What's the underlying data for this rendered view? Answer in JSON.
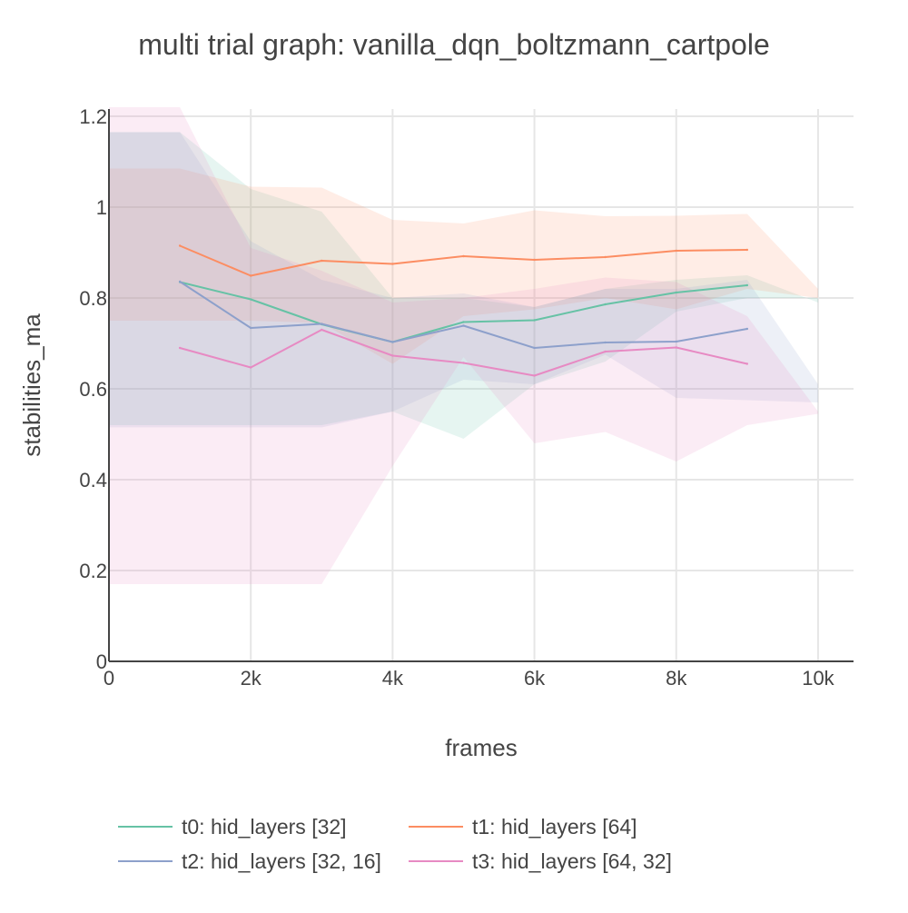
{
  "chart_data": {
    "type": "line",
    "title": "multi trial graph: vanilla_dqn_boltzmann_cartpole",
    "xlabel": "frames",
    "ylabel": "stabilities_ma",
    "xlim": [
      0,
      10500
    ],
    "ylim": [
      0,
      1.2
    ],
    "x_ticks": [
      0,
      2000,
      4000,
      6000,
      8000,
      10000
    ],
    "x_tick_labels": [
      "0",
      "2k",
      "4k",
      "6k",
      "8k",
      "10k"
    ],
    "y_ticks": [
      0,
      0.2,
      0.4,
      0.6,
      0.8,
      1,
      1.2
    ],
    "y_tick_labels": [
      "0",
      "0.2",
      "0.4",
      "0.6",
      "0.8",
      "1",
      "1.2"
    ],
    "grid": true,
    "legend_position": "bottom",
    "x": [
      1000,
      2000,
      3000,
      4000,
      5000,
      6000,
      7000,
      8000,
      9000
    ],
    "series": [
      {
        "name": "t0: hid_layers [32]",
        "color": "#66c2a5",
        "values": [
          0.835,
          0.797,
          0.742,
          0.703,
          0.747,
          0.751,
          0.786,
          0.812,
          0.828
        ],
        "band_x": [
          0,
          1000,
          2000,
          3000,
          4000,
          5000,
          6000,
          7000,
          8000,
          9000,
          10000
        ],
        "band_upper": [
          1.165,
          1.165,
          1.04,
          0.99,
          0.8,
          0.8,
          0.78,
          0.82,
          0.84,
          0.85,
          0.79
        ],
        "band_lower": [
          0.52,
          0.52,
          0.52,
          0.52,
          0.55,
          0.49,
          0.61,
          0.66,
          0.77,
          0.8,
          0.8
        ]
      },
      {
        "name": "t1: hid_layers [64]",
        "color": "#fc8d62",
        "values": [
          0.915,
          0.849,
          0.882,
          0.875,
          0.892,
          0.884,
          0.89,
          0.904,
          0.906
        ],
        "band_x": [
          0,
          1000,
          2000,
          3000,
          4000,
          5000,
          6000,
          7000,
          8000,
          9000,
          10000
        ],
        "band_upper": [
          1.085,
          1.085,
          1.045,
          1.043,
          0.972,
          0.964,
          0.993,
          0.98,
          0.981,
          0.985,
          0.82
        ],
        "band_lower": [
          0.75,
          0.75,
          0.75,
          0.745,
          0.655,
          0.76,
          0.775,
          0.8,
          0.775,
          0.82,
          0.8
        ]
      },
      {
        "name": "t2: hid_layers [32, 16]",
        "color": "#8da0cb",
        "values": [
          0.836,
          0.734,
          0.743,
          0.703,
          0.739,
          0.69,
          0.702,
          0.704,
          0.732
        ],
        "band_x": [
          0,
          1000,
          2000,
          3000,
          4000,
          5000,
          6000,
          7000,
          8000,
          9000,
          10000
        ],
        "band_upper": [
          1.165,
          1.165,
          0.925,
          0.84,
          0.8,
          0.81,
          0.78,
          0.82,
          0.82,
          0.84,
          0.61
        ],
        "band_lower": [
          0.515,
          0.515,
          0.515,
          0.515,
          0.55,
          0.62,
          0.61,
          0.675,
          0.58,
          0.575,
          0.57
        ]
      },
      {
        "name": "t3: hid_layers [64, 32]",
        "color": "#e78ac3",
        "values": [
          0.69,
          0.647,
          0.73,
          0.673,
          0.657,
          0.629,
          0.682,
          0.691,
          0.655
        ],
        "band_x": [
          0,
          1000,
          2000,
          3000,
          4000,
          5000,
          6000,
          7000,
          8000,
          9000,
          10000
        ],
        "band_upper": [
          1.22,
          1.22,
          0.91,
          0.86,
          0.79,
          0.8,
          0.82,
          0.845,
          0.835,
          0.76,
          0.55
        ],
        "band_lower": [
          0.17,
          0.17,
          0.17,
          0.17,
          0.43,
          0.67,
          0.48,
          0.505,
          0.44,
          0.52,
          0.545
        ]
      }
    ]
  }
}
